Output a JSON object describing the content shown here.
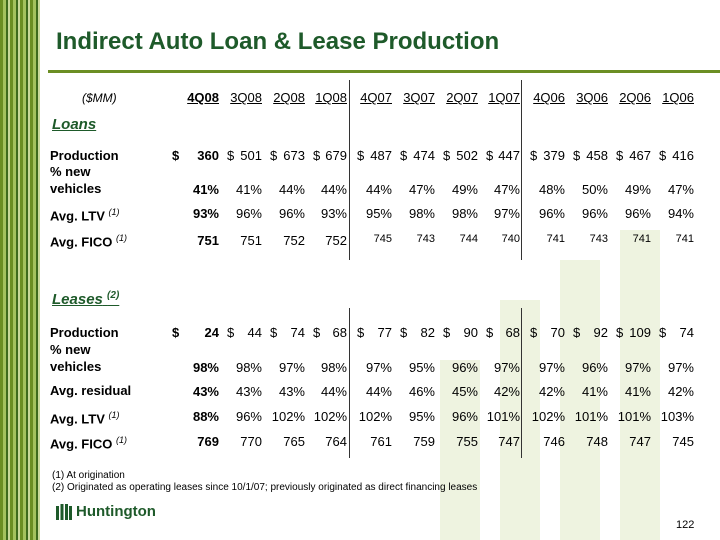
{
  "title": "Indirect Auto Loan & Lease Production",
  "unit_label": "($MM)",
  "columns": [
    "4Q08",
    "3Q08",
    "2Q08",
    "1Q08",
    "4Q07",
    "3Q07",
    "2Q07",
    "1Q07",
    "4Q06",
    "3Q06",
    "2Q06",
    "1Q06"
  ],
  "loans": {
    "heading": "Loans",
    "rows": [
      {
        "label": "Production",
        "dollar": true,
        "values": [
          "360",
          "501",
          "673",
          "679",
          "487",
          "474",
          "502",
          "447",
          "379",
          "458",
          "467",
          "416"
        ]
      },
      {
        "label": "% new",
        "label2": "vehicles",
        "values": [
          "41%",
          "41%",
          "44%",
          "44%",
          "44%",
          "47%",
          "49%",
          "47%",
          "48%",
          "50%",
          "49%",
          "47%"
        ]
      },
      {
        "label": "Avg. LTV",
        "note": "(1)",
        "values": [
          "93%",
          "96%",
          "96%",
          "93%",
          "95%",
          "98%",
          "98%",
          "97%",
          "96%",
          "96%",
          "96%",
          "94%"
        ]
      },
      {
        "label": "Avg. FICO",
        "note": "(1)",
        "values": [
          "751",
          "751",
          "752",
          "752",
          "745",
          "743",
          "744",
          "740",
          "741",
          "743",
          "741",
          "741"
        ]
      }
    ]
  },
  "leases": {
    "heading": "Leases",
    "heading_note": "(2)",
    "rows": [
      {
        "label": "Production",
        "dollar": true,
        "values": [
          "24",
          "44",
          "74",
          "68",
          "77",
          "82",
          "90",
          "68",
          "70",
          "92",
          "109",
          "74"
        ]
      },
      {
        "label": "% new",
        "label2": "vehicles",
        "values": [
          "98%",
          "98%",
          "97%",
          "98%",
          "97%",
          "95%",
          "96%",
          "97%",
          "97%",
          "96%",
          "97%",
          "97%"
        ]
      },
      {
        "label": "Avg. residual",
        "values": [
          "43%",
          "43%",
          "43%",
          "44%",
          "44%",
          "46%",
          "45%",
          "42%",
          "42%",
          "41%",
          "41%",
          "42%"
        ]
      },
      {
        "label": "Avg. LTV",
        "note": "(1)",
        "values": [
          "88%",
          "96%",
          "102%",
          "102%",
          "102%",
          "95%",
          "96%",
          "101%",
          "102%",
          "101%",
          "101%",
          "103%"
        ]
      },
      {
        "label": "Avg. FICO",
        "note": "(1)",
        "values": [
          "769",
          "770",
          "765",
          "764",
          "761",
          "759",
          "755",
          "747",
          "746",
          "748",
          "747",
          "745"
        ]
      }
    ]
  },
  "footnotes": [
    "(1)  At origination",
    "(2)  Originated as operating leases since 10/1/07; previously originated as direct financing leases"
  ],
  "logo_text": "Huntington",
  "page_number": "122",
  "colors": {
    "brand_green": "#1e5a2a",
    "stripe_green": "#6b8e23"
  }
}
